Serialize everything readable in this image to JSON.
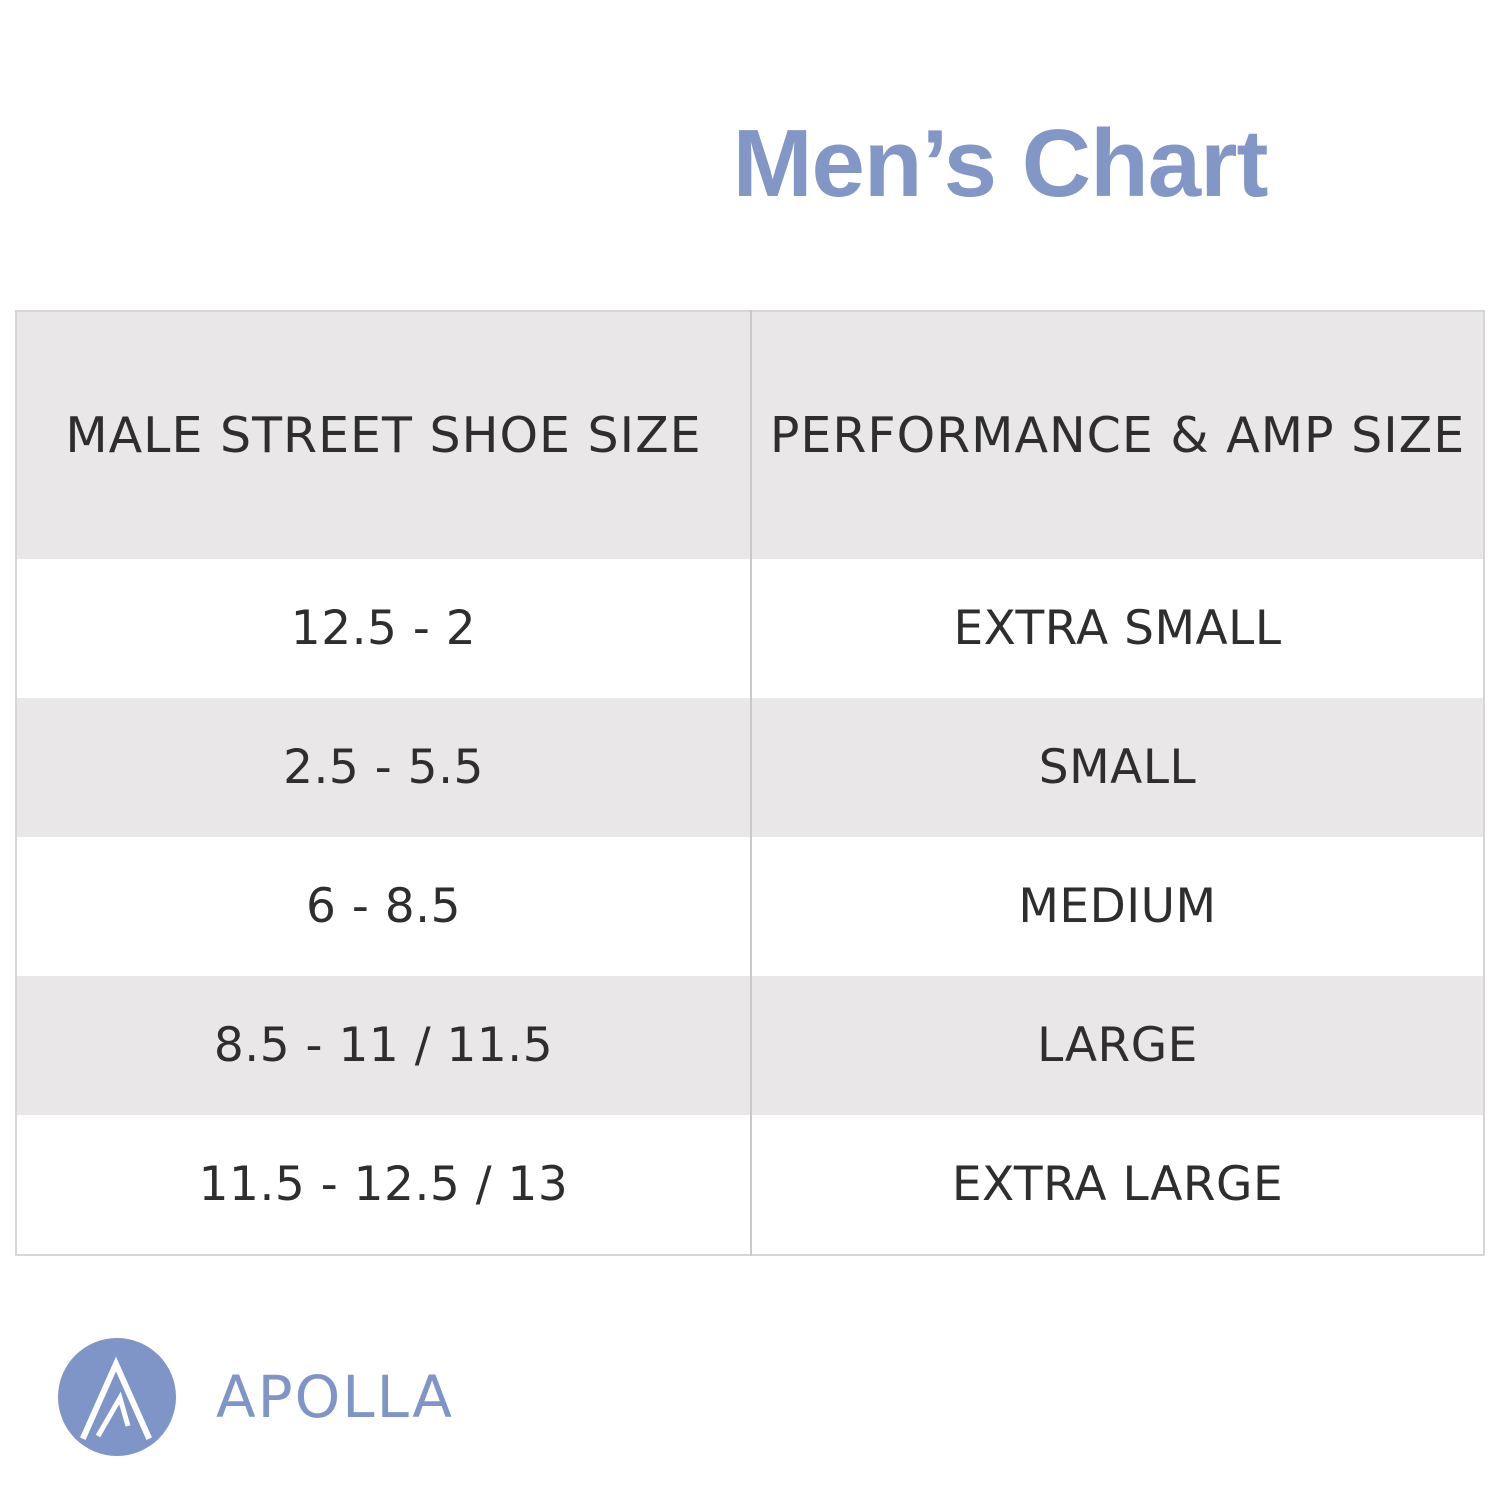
{
  "title": "Men’s Chart",
  "colors": {
    "title": "#8397c6",
    "brand": "#7f95c8",
    "header_bg": "#e9e7e7",
    "row_shade_bg": "#e9e7e7",
    "text": "#2e2e2e"
  },
  "table": {
    "headers": [
      "MALE STREET SHOE SIZE",
      "PERFORMANCE & AMP SIZE"
    ],
    "rows": [
      [
        "12.5 - 2",
        "EXTRA SMALL"
      ],
      [
        "2.5 - 5.5",
        "SMALL"
      ],
      [
        "6 - 8.5",
        "MEDIUM"
      ],
      [
        "8.5 - 11 / 11.5",
        "LARGE"
      ],
      [
        "11.5 - 12.5 / 13",
        "EXTRA LARGE"
      ]
    ]
  },
  "brand": {
    "name": "APOLLA",
    "logo_icon": "apolla-a-monogram-icon"
  }
}
